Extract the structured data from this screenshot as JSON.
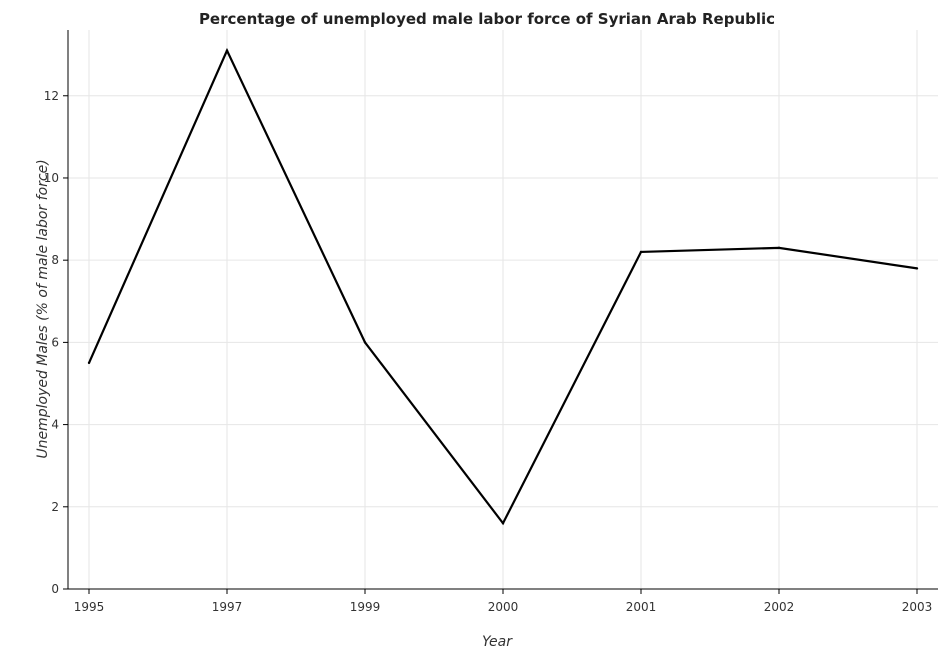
{
  "chart_data": {
    "type": "line",
    "title": "Percentage of unemployed male labor force of Syrian Arab Republic",
    "xlabel": "Year",
    "ylabel": "Unemployed Males (% of male labor force)",
    "categories": [
      "1995",
      "1997",
      "1999",
      "2000",
      "2001",
      "2002",
      "2003"
    ],
    "series": [
      {
        "values": [
          5.5,
          13.1,
          6.0,
          1.6,
          8.2,
          8.3,
          7.8
        ]
      }
    ],
    "yticks": [
      0,
      2,
      4,
      6,
      8,
      10,
      12
    ],
    "ylim": [
      0,
      13.6
    ],
    "grid": true,
    "line_color": "#000000"
  }
}
